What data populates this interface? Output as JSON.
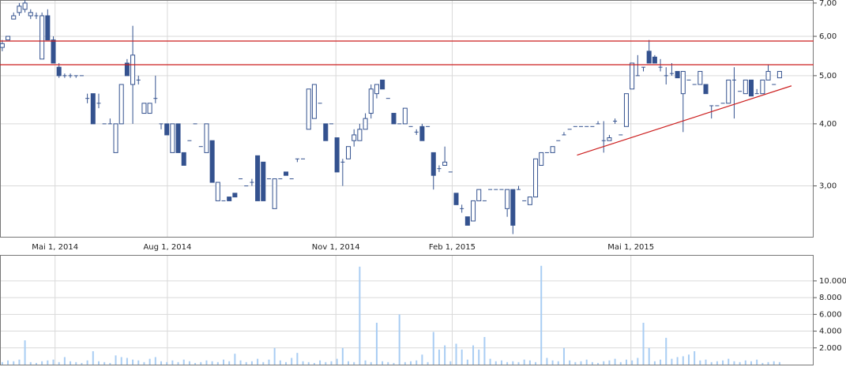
{
  "chart_data": [
    {
      "type": "candlestick",
      "log": true,
      "grid": true,
      "up_color": "#ffffff",
      "down_color": "#34528f",
      "edge_color": "#34528f",
      "xlim": [
        -0.4,
        143
      ],
      "ylim": [
        2.37,
        7.1
      ],
      "xticks": [
        {
          "value": 9.3,
          "label": "Mai 1, 2014"
        },
        {
          "value": 29.1,
          "label": "Aug 1, 2014"
        },
        {
          "value": 58.8,
          "label": "Nov 1, 2014"
        },
        {
          "value": 79.3,
          "label": "Feb 1, 2015"
        },
        {
          "value": 110.8,
          "label": "Mai 1, 2015"
        }
      ],
      "yticks": [
        {
          "value": 3,
          "label": "3,00"
        },
        {
          "value": 4,
          "label": "4,00"
        },
        {
          "value": 5,
          "label": "5,00"
        },
        {
          "value": 6,
          "label": "6,00"
        },
        {
          "value": 7,
          "label": "7,00"
        }
      ],
      "hlines": [
        {
          "value": 5.87,
          "color": "#cc1f1f"
        },
        {
          "value": 5.26,
          "color": "#cc1f1f"
        }
      ],
      "trendline": {
        "color": "#cc1f1f",
        "x": [
          101.3,
          139.1
        ],
        "y": [
          3.46,
          4.77
        ]
      },
      "ohlc": [
        [
          5.7,
          5.9,
          5.6,
          5.8
        ],
        [
          5.9,
          6.0,
          5.9,
          6.0
        ],
        [
          6.5,
          6.7,
          6.5,
          6.6
        ],
        [
          6.7,
          7.0,
          6.6,
          6.9
        ],
        [
          6.8,
          7.1,
          6.7,
          7.0
        ],
        [
          6.6,
          6.8,
          6.5,
          6.7
        ],
        [
          6.6,
          6.7,
          6.5,
          6.6
        ],
        [
          5.4,
          6.7,
          5.4,
          6.6
        ],
        [
          6.6,
          6.8,
          5.9,
          5.9
        ],
        [
          5.9,
          6.0,
          5.3,
          5.3
        ],
        [
          5.2,
          5.3,
          4.95,
          5.0
        ],
        [
          5.0,
          5.05,
          4.95,
          5.0
        ],
        [
          5.0,
          5.05,
          4.95,
          5.0
        ],
        [
          5.0,
          5.0,
          4.95,
          5.0
        ],
        [
          5.0,
          5.0,
          5.0,
          5.0
        ],
        [
          4.5,
          4.6,
          4.4,
          4.5
        ],
        [
          4.6,
          4.6,
          4.0,
          4.0
        ],
        [
          4.4,
          4.6,
          4.3,
          4.4
        ],
        [
          4.0,
          4.0,
          4.0,
          4.0
        ],
        [
          4.0,
          4.1,
          4.0,
          4.0
        ],
        [
          3.5,
          4.0,
          3.5,
          4.0
        ],
        [
          4.0,
          4.8,
          4.0,
          4.8
        ],
        [
          5.3,
          5.4,
          5.0,
          5.0
        ],
        [
          4.8,
          6.3,
          4.0,
          5.5
        ],
        [
          4.9,
          5.0,
          4.8,
          4.9
        ],
        [
          4.2,
          4.4,
          4.2,
          4.4
        ],
        [
          4.2,
          4.4,
          4.2,
          4.4
        ],
        [
          4.5,
          5.0,
          4.4,
          4.5
        ],
        [
          4.0,
          4.0,
          3.9,
          4.0
        ],
        [
          4.0,
          4.0,
          3.8,
          3.8
        ],
        [
          3.5,
          4.0,
          3.5,
          4.0
        ],
        [
          4.0,
          4.0,
          3.5,
          3.5
        ],
        [
          3.5,
          3.5,
          3.3,
          3.3
        ],
        [
          3.7,
          3.7,
          3.7,
          3.7
        ],
        [
          4.0,
          4.0,
          4.0,
          4.0
        ],
        [
          3.6,
          3.6,
          3.6,
          3.6
        ],
        [
          3.5,
          4.0,
          3.5,
          4.0
        ],
        [
          3.7,
          3.7,
          3.05,
          3.05
        ],
        [
          2.8,
          3.05,
          2.8,
          3.05
        ],
        [
          2.8,
          2.8,
          2.8,
          2.8
        ],
        [
          2.85,
          2.85,
          2.8,
          2.8
        ],
        [
          2.9,
          2.9,
          2.85,
          2.85
        ],
        [
          3.1,
          3.1,
          3.1,
          3.1
        ],
        [
          3.0,
          3.0,
          3.0,
          3.0
        ],
        [
          3.05,
          3.1,
          3.0,
          3.05
        ],
        [
          3.45,
          3.45,
          2.8,
          2.8
        ],
        [
          3.35,
          3.35,
          2.8,
          2.8
        ],
        [
          3.1,
          3.1,
          3.1,
          3.1
        ],
        [
          2.7,
          3.1,
          2.7,
          3.1
        ],
        [
          3.1,
          3.1,
          3.1,
          3.1
        ],
        [
          3.2,
          3.2,
          3.15,
          3.15
        ],
        [
          3.1,
          3.1,
          3.1,
          3.1
        ],
        [
          3.4,
          3.4,
          3.35,
          3.4
        ],
        [
          3.4,
          3.4,
          3.4,
          3.4
        ],
        [
          3.9,
          4.7,
          3.9,
          4.7
        ],
        [
          4.1,
          4.8,
          4.1,
          4.8
        ],
        [
          4.4,
          4.4,
          4.4,
          4.4
        ],
        [
          4.0,
          4.0,
          3.7,
          3.7
        ],
        [
          4.0,
          4.0,
          4.0,
          4.0
        ],
        [
          3.75,
          3.75,
          3.2,
          3.2
        ],
        [
          3.35,
          3.4,
          3.0,
          3.35
        ],
        [
          3.4,
          3.6,
          3.4,
          3.6
        ],
        [
          3.7,
          3.9,
          3.6,
          3.8
        ],
        [
          3.7,
          4.0,
          3.7,
          3.9
        ],
        [
          3.9,
          4.2,
          3.9,
          4.1
        ],
        [
          4.2,
          4.8,
          4.1,
          4.7
        ],
        [
          4.6,
          4.8,
          4.5,
          4.8
        ],
        [
          4.9,
          4.9,
          4.7,
          4.7
        ],
        [
          4.5,
          4.5,
          4.5,
          4.5
        ],
        [
          4.2,
          4.2,
          4.0,
          4.0
        ],
        [
          4.0,
          4.0,
          4.0,
          4.0
        ],
        [
          4.0,
          4.3,
          4.0,
          4.3
        ],
        [
          3.95,
          3.95,
          3.95,
          3.95
        ],
        [
          3.85,
          3.9,
          3.8,
          3.85
        ],
        [
          3.95,
          4.0,
          3.7,
          3.7
        ],
        [
          3.95,
          3.95,
          3.95,
          3.95
        ],
        [
          3.5,
          3.5,
          2.95,
          3.15
        ],
        [
          3.25,
          3.3,
          3.2,
          3.25
        ],
        [
          3.3,
          3.6,
          3.3,
          3.35
        ],
        [
          3.2,
          3.2,
          3.2,
          3.2
        ],
        [
          2.9,
          2.9,
          2.75,
          2.75
        ],
        [
          2.7,
          2.75,
          2.65,
          2.7
        ],
        [
          2.6,
          2.6,
          2.5,
          2.5
        ],
        [
          2.55,
          2.8,
          2.55,
          2.8
        ],
        [
          2.8,
          2.95,
          2.8,
          2.95
        ],
        [
          2.8,
          2.8,
          2.8,
          2.8
        ],
        [
          2.95,
          2.95,
          2.95,
          2.95
        ],
        [
          2.95,
          2.95,
          2.95,
          2.95
        ],
        [
          2.95,
          2.95,
          2.95,
          2.95
        ],
        [
          2.7,
          2.95,
          2.6,
          2.95
        ],
        [
          2.95,
          2.95,
          2.4,
          2.5
        ],
        [
          2.95,
          3.0,
          2.95,
          2.95
        ],
        [
          2.8,
          2.8,
          2.8,
          2.8
        ],
        [
          2.75,
          2.85,
          2.75,
          2.85
        ],
        [
          2.85,
          3.4,
          2.85,
          3.4
        ],
        [
          3.3,
          3.5,
          3.3,
          3.5
        ],
        [
          3.5,
          3.5,
          3.5,
          3.5
        ],
        [
          3.5,
          3.6,
          3.5,
          3.6
        ],
        [
          3.7,
          3.7,
          3.7,
          3.7
        ],
        [
          3.8,
          3.85,
          3.8,
          3.8
        ],
        [
          3.9,
          3.9,
          3.9,
          3.9
        ],
        [
          3.95,
          3.95,
          3.95,
          3.95
        ],
        [
          3.95,
          3.95,
          3.95,
          3.95
        ],
        [
          3.95,
          3.95,
          3.95,
          3.95
        ],
        [
          3.95,
          3.95,
          3.95,
          3.95
        ],
        [
          4.0,
          4.05,
          4.0,
          4.0
        ],
        [
          3.7,
          4.05,
          3.5,
          3.7
        ],
        [
          3.7,
          3.8,
          3.7,
          3.75
        ],
        [
          4.05,
          4.1,
          4.0,
          4.05
        ],
        [
          3.8,
          3.8,
          3.8,
          3.8
        ],
        [
          3.95,
          4.6,
          3.95,
          4.6
        ],
        [
          4.7,
          5.3,
          4.7,
          5.3
        ],
        [
          5.0,
          5.5,
          5.0,
          5.0
        ],
        [
          5.2,
          5.2,
          5.1,
          5.2
        ],
        [
          5.6,
          5.9,
          5.3,
          5.3
        ],
        [
          5.45,
          5.5,
          5.3,
          5.3
        ],
        [
          5.2,
          5.4,
          5.1,
          5.2
        ],
        [
          5.0,
          5.2,
          4.8,
          5.0
        ],
        [
          5.05,
          5.3,
          5.0,
          5.05
        ],
        [
          5.1,
          5.1,
          4.95,
          4.95
        ],
        [
          4.6,
          5.1,
          3.85,
          5.1
        ],
        [
          4.9,
          4.9,
          4.9,
          4.9
        ],
        [
          4.8,
          4.8,
          4.8,
          4.8
        ],
        [
          4.8,
          5.1,
          4.8,
          5.1
        ],
        [
          4.8,
          4.8,
          4.6,
          4.6
        ],
        [
          4.35,
          4.35,
          4.1,
          4.35
        ],
        [
          4.35,
          4.35,
          4.35,
          4.35
        ],
        [
          4.4,
          4.4,
          4.4,
          4.4
        ],
        [
          4.4,
          4.9,
          4.4,
          4.9
        ],
        [
          4.9,
          5.2,
          4.1,
          4.9
        ],
        [
          4.65,
          4.65,
          4.65,
          4.65
        ],
        [
          4.6,
          4.9,
          4.6,
          4.9
        ],
        [
          4.9,
          4.9,
          4.55,
          4.55
        ],
        [
          4.6,
          4.7,
          4.6,
          4.6
        ],
        [
          4.6,
          4.9,
          4.6,
          4.9
        ],
        [
          4.9,
          5.25,
          4.9,
          5.1
        ],
        [
          4.8,
          4.8,
          4.8,
          4.8
        ],
        [
          4.95,
          5.1,
          4.95,
          5.1
        ]
      ]
    },
    {
      "type": "bar",
      "grid": true,
      "color": "#a9cdf3",
      "xlim": [
        -0.4,
        143
      ],
      "ylim": [
        0,
        13100
      ],
      "yticks": [
        {
          "value": 2000,
          "label": "2.000"
        },
        {
          "value": 4000,
          "label": "4.000"
        },
        {
          "value": 6000,
          "label": "6.000"
        },
        {
          "value": 8000,
          "label": "8.000"
        },
        {
          "value": 10000,
          "label": "10.000"
        }
      ],
      "values": [
        300,
        500,
        400,
        600,
        2900,
        300,
        200,
        400,
        500,
        600,
        300,
        900,
        400,
        300,
        200,
        500,
        1600,
        400,
        300,
        200,
        1100,
        900,
        800,
        600,
        500,
        300,
        700,
        900,
        400,
        300,
        500,
        300,
        600,
        400,
        200,
        300,
        500,
        400,
        300,
        600,
        400,
        1300,
        500,
        300,
        400,
        700,
        300,
        600,
        2000,
        500,
        300,
        800,
        1400,
        400,
        300,
        200,
        500,
        300,
        400,
        700,
        2000,
        400,
        300,
        11700,
        500,
        300,
        5000,
        400,
        300,
        200,
        6000,
        300,
        400,
        500,
        1200,
        300,
        3900,
        1800,
        2300,
        400,
        2500,
        1800,
        600,
        2300,
        1800,
        3300,
        700,
        400,
        500,
        300,
        400,
        300,
        600,
        500,
        300,
        11800,
        800,
        500,
        400,
        2000,
        500,
        300,
        400,
        600,
        300,
        200,
        400,
        500,
        700,
        300,
        600,
        500,
        800,
        5000,
        2000,
        400,
        600,
        3200,
        700,
        900,
        1000,
        1200,
        1600,
        500,
        600,
        300,
        400,
        500,
        700,
        400,
        300,
        500,
        400,
        600,
        200,
        300,
        400,
        300
      ]
    }
  ]
}
